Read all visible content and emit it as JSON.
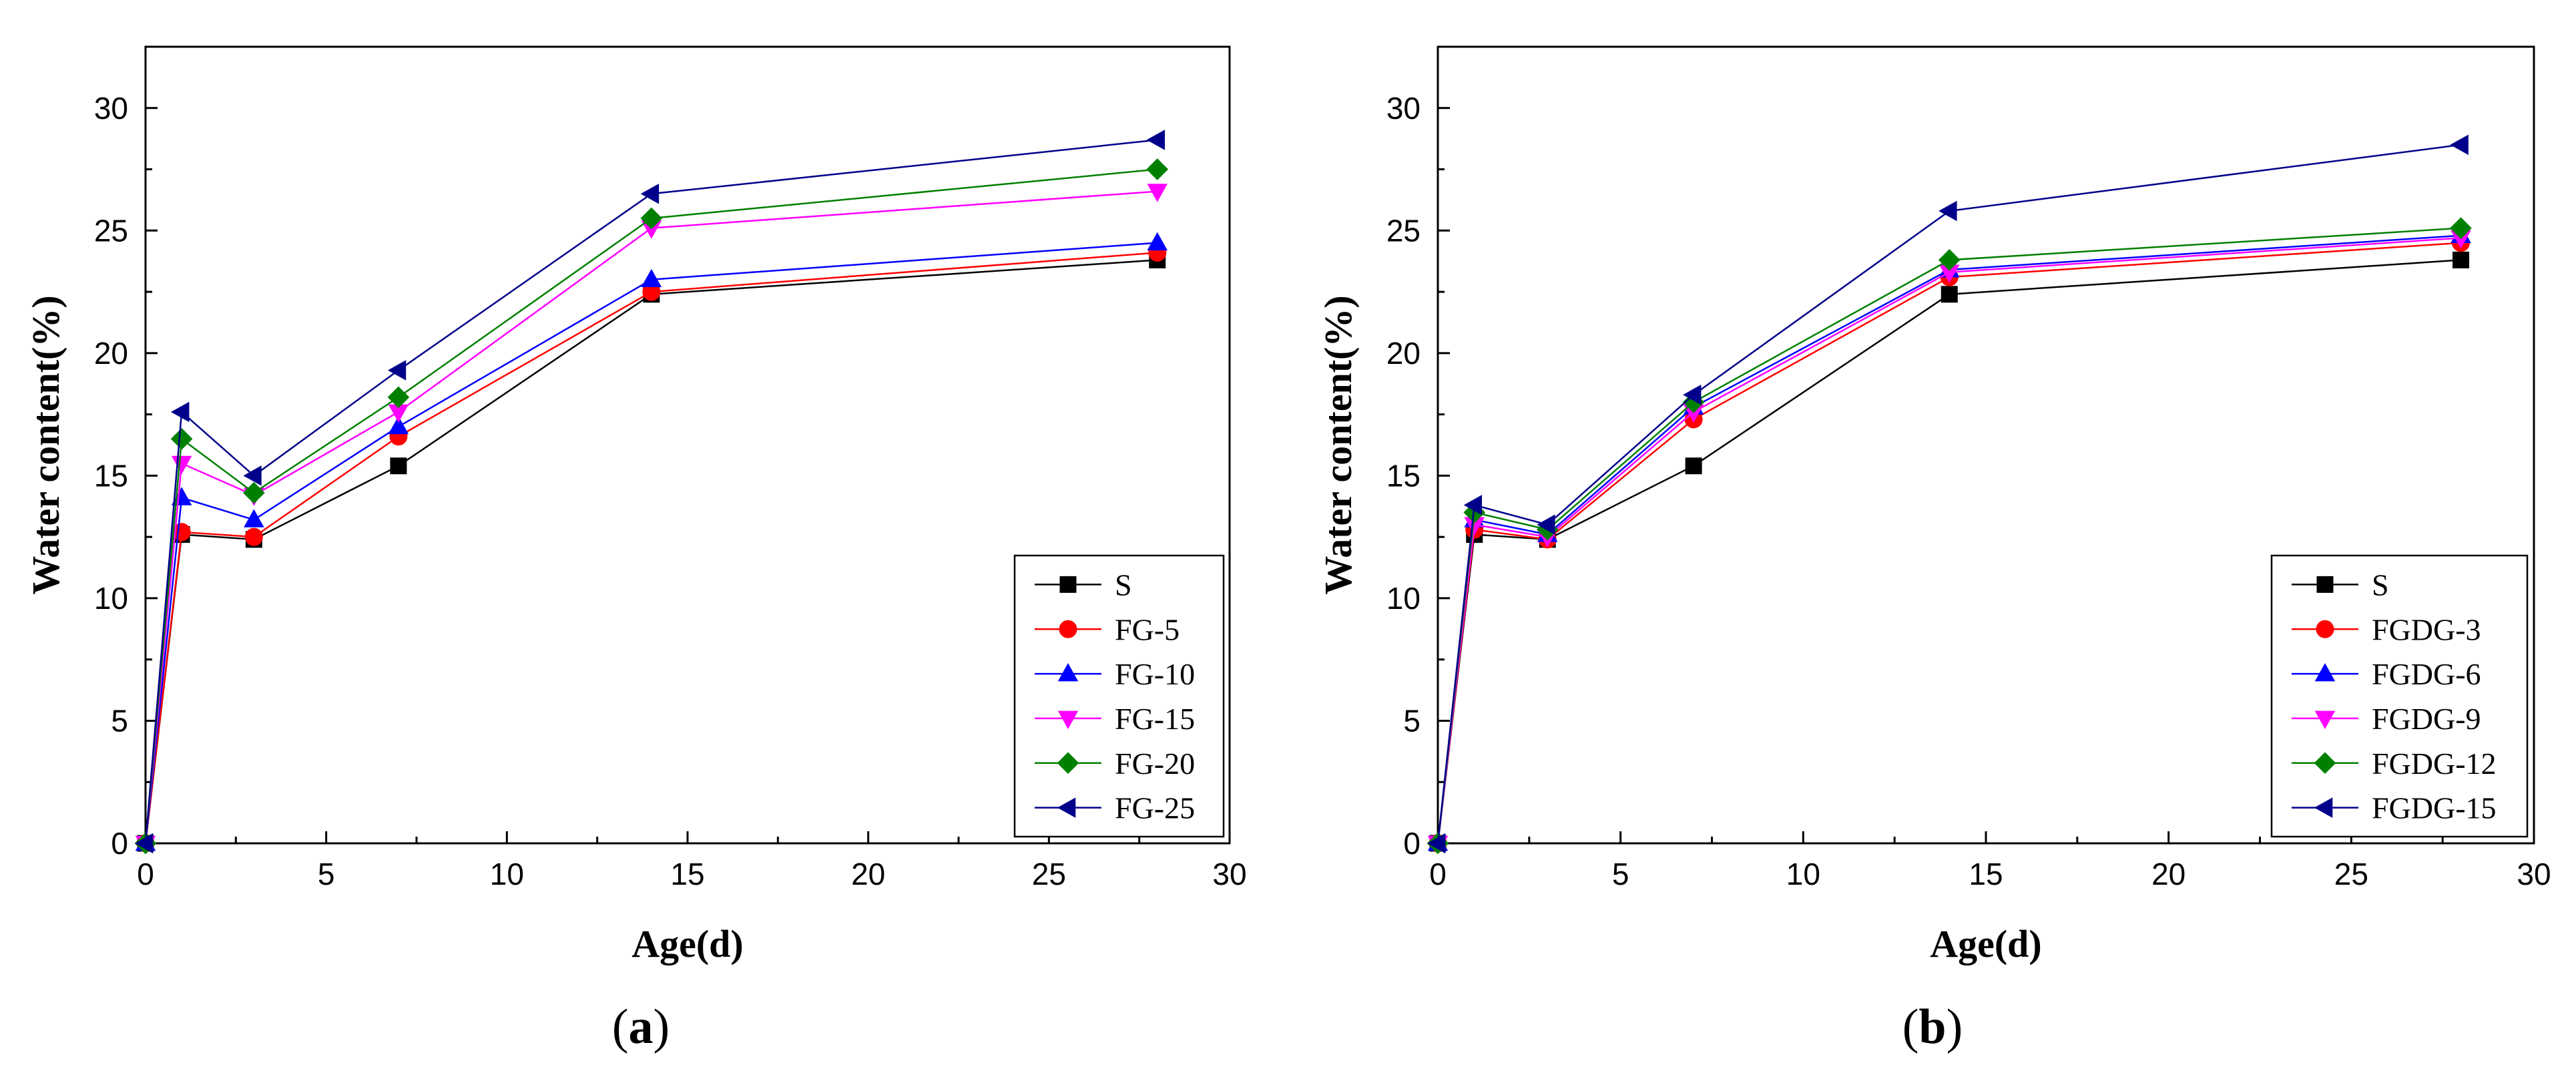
{
  "chart_data": [
    {
      "type": "line",
      "panel": "a",
      "caption_open": "(",
      "caption_letter": "a",
      "caption_close": ")",
      "xlabel": "Age(d)",
      "ylabel": "Water content(%)",
      "xlim": [
        0,
        30
      ],
      "ylim": [
        0,
        32.5
      ],
      "xticks": [
        0,
        5,
        10,
        15,
        20,
        25,
        30
      ],
      "yticks": [
        0,
        5,
        10,
        15,
        20,
        25,
        30
      ],
      "legend_position": "bottom-right",
      "x": [
        0,
        1,
        3,
        7,
        14,
        28
      ],
      "series": [
        {
          "name": "S",
          "color": "#000000",
          "marker": "square",
          "values": [
            0,
            12.6,
            12.4,
            15.4,
            22.4,
            23.8
          ]
        },
        {
          "name": "FG-5",
          "color": "#ff0000",
          "marker": "circle",
          "values": [
            0,
            12.7,
            12.5,
            16.6,
            22.5,
            24.1
          ]
        },
        {
          "name": "FG-10",
          "color": "#0000ff",
          "marker": "triangle-up",
          "values": [
            0,
            14.1,
            13.2,
            17.0,
            23.0,
            24.5
          ]
        },
        {
          "name": "FG-15",
          "color": "#ff00ff",
          "marker": "triangle-down",
          "values": [
            0,
            15.5,
            14.2,
            17.6,
            25.1,
            26.6
          ]
        },
        {
          "name": "FG-20",
          "color": "#008000",
          "marker": "diamond",
          "values": [
            0,
            16.5,
            14.3,
            18.2,
            25.5,
            27.5
          ]
        },
        {
          "name": "FG-25",
          "color": "#00008b",
          "marker": "triangle-left",
          "values": [
            0,
            17.6,
            15.0,
            19.3,
            26.5,
            28.7
          ]
        }
      ]
    },
    {
      "type": "line",
      "panel": "b",
      "caption_open": "(",
      "caption_letter": "b",
      "caption_close": ")",
      "xlabel": "Age(d)",
      "ylabel": "Water content(%)",
      "xlim": [
        0,
        30
      ],
      "ylim": [
        0,
        32.5
      ],
      "xticks": [
        0,
        5,
        10,
        15,
        20,
        25,
        30
      ],
      "yticks": [
        0,
        5,
        10,
        15,
        20,
        25,
        30
      ],
      "legend_position": "bottom-right",
      "x": [
        0,
        1,
        3,
        7,
        14,
        28
      ],
      "series": [
        {
          "name": "S",
          "color": "#000000",
          "marker": "square",
          "values": [
            0,
            12.6,
            12.4,
            15.4,
            22.4,
            23.8
          ]
        },
        {
          "name": "FGDG-3",
          "color": "#ff0000",
          "marker": "circle",
          "values": [
            0,
            12.8,
            12.4,
            17.3,
            23.1,
            24.5
          ]
        },
        {
          "name": "FGDG-6",
          "color": "#0000ff",
          "marker": "triangle-up",
          "values": [
            0,
            13.2,
            12.6,
            17.8,
            23.4,
            24.8
          ]
        },
        {
          "name": "FGDG-9",
          "color": "#ff00ff",
          "marker": "triangle-down",
          "values": [
            0,
            13.0,
            12.5,
            17.6,
            23.3,
            24.7
          ]
        },
        {
          "name": "FGDG-12",
          "color": "#008000",
          "marker": "diamond",
          "values": [
            0,
            13.5,
            12.8,
            18.0,
            23.8,
            25.1
          ]
        },
        {
          "name": "FGDG-15",
          "color": "#00008b",
          "marker": "triangle-left",
          "values": [
            0,
            13.8,
            13.0,
            18.3,
            25.8,
            28.5
          ]
        }
      ]
    }
  ]
}
